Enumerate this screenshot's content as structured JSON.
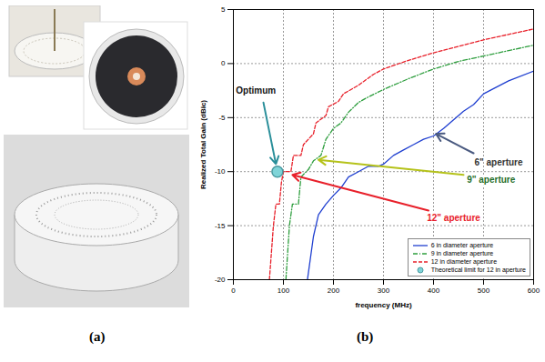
{
  "chart_data": {
    "type": "line",
    "xlabel": "frequency (MHz)",
    "ylabel": "Realized Total Gain (dBic)",
    "xlim": [
      0,
      600
    ],
    "xticks": [
      0,
      100,
      200,
      300,
      400,
      500,
      600
    ],
    "ylim": [
      -20,
      5
    ],
    "yticks": [
      -20,
      -15,
      -10,
      -5,
      0,
      5
    ],
    "grid": true,
    "legend": "lower right",
    "series": [
      {
        "name": "6 in diameter aperture",
        "color": "#1f3fd0",
        "type": "line",
        "line_style": "solid",
        "x": [
          148,
          160,
          170,
          185,
          200,
          215,
          230,
          250,
          270,
          290,
          300,
          320,
          340,
          360,
          380,
          400,
          420,
          440,
          460,
          480,
          500,
          550,
          600
        ],
        "values": [
          -20,
          -16,
          -14,
          -13,
          -12.2,
          -11.5,
          -10.5,
          -10,
          -9.5,
          -9.5,
          -9.3,
          -8.5,
          -8,
          -7.5,
          -7,
          -6.7,
          -6,
          -5.2,
          -4.4,
          -3.8,
          -2.8,
          -1.6,
          -0.7
        ]
      },
      {
        "name": "9 in diameter aperture",
        "color": "#2e9e3e",
        "type": "line",
        "line_style": "dashdot",
        "x": [
          105,
          112,
          118,
          130,
          135,
          150,
          160,
          175,
          185,
          200,
          215,
          230,
          250,
          265,
          300,
          350,
          400,
          450,
          500,
          550,
          600
        ],
        "values": [
          -20,
          -15,
          -13,
          -13,
          -10.5,
          -9.8,
          -9,
          -8.5,
          -7,
          -6,
          -5.5,
          -4.5,
          -3.6,
          -3.2,
          -2.4,
          -1.4,
          -0.5,
          0.2,
          0.7,
          1.2,
          1.7
        ]
      },
      {
        "name": "12 in diameter aperture",
        "color": "#e8202a",
        "type": "line",
        "line_style": "dashed",
        "x": [
          72,
          80,
          85,
          92,
          96,
          100,
          115,
          120,
          135,
          140,
          160,
          165,
          185,
          190,
          210,
          220,
          250,
          280,
          300,
          350,
          400,
          450,
          500,
          550,
          600
        ],
        "values": [
          -20,
          -15,
          -13,
          -13,
          -11,
          -10,
          -10,
          -8.5,
          -8.5,
          -7.5,
          -6.5,
          -5.5,
          -4.8,
          -4,
          -3.5,
          -2.8,
          -2,
          -1,
          -0.5,
          0.3,
          1,
          1.6,
          2.2,
          2.7,
          3.2
        ]
      },
      {
        "name": "Theoretical limit for 12 in aperture",
        "color": "#7fd4d8",
        "type": "scatter",
        "marker": "circle",
        "x": [
          88
        ],
        "values": [
          -10
        ]
      }
    ],
    "annotations": [
      {
        "text": "Optimum",
        "x": 45,
        "y": -2.5,
        "color": "#111111",
        "arrow_from": [
          60,
          -3.6
        ],
        "arrow_to": [
          85,
          -9.3
        ],
        "arrow_color": "#2a8f9a"
      },
      {
        "text": "6\" aperture",
        "x": 530,
        "y": -9.2,
        "color": "#333333",
        "arrow_from": [
          480,
          -8.3
        ],
        "arrow_to": [
          405,
          -6.5
        ],
        "arrow_color": "#4a5a80"
      },
      {
        "text": "9\" aperture",
        "x": 515,
        "y": -10.8,
        "color": "#1f6e2a",
        "arrow_from": [
          460,
          -10.3
        ],
        "arrow_to": [
          170,
          -8.9
        ],
        "arrow_color": "#b5c21a"
      },
      {
        "text": "12\" aperture",
        "x": 440,
        "y": -14.3,
        "color": "#e8202a",
        "arrow_from": [
          390,
          -13.6
        ],
        "arrow_to": [
          118,
          -10.3
        ],
        "arrow_color": "#e8202a"
      }
    ]
  },
  "panel_labels": [
    "(a)",
    "(b)"
  ]
}
